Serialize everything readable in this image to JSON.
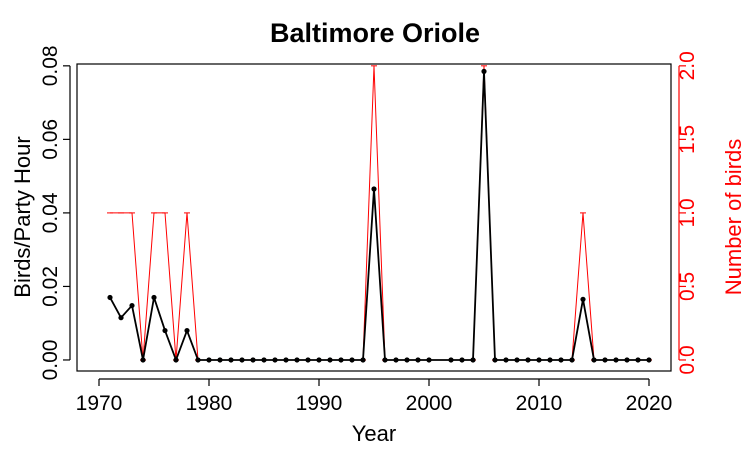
{
  "chart_data": {
    "type": "line",
    "title": "Baltimore Oriole",
    "xlabel": "Year",
    "ylabel_left": "Birds/Party Hour",
    "ylabel_right": "Number of birds",
    "xlim": [
      1968,
      2022
    ],
    "ylim_left": [
      -0.003,
      0.0805
    ],
    "ylim_right": [
      -0.075,
      2.0125
    ],
    "x_ticks": [
      "1970",
      "1980",
      "1990",
      "2000",
      "2010",
      "2020"
    ],
    "y_ticks_left": [
      "0.00",
      "0.02",
      "0.04",
      "0.06",
      "0.08"
    ],
    "y_ticks_right": [
      "0.0",
      "0.5",
      "1.0",
      "1.5",
      "2.0"
    ],
    "grid": false,
    "colors": {
      "left_series": "#000000",
      "right_series": "#ff0000",
      "axes": "#000000"
    },
    "series": [
      {
        "axis": "left",
        "marker": "point",
        "points": [
          [
            1971,
            0.017
          ],
          [
            1972,
            0.0115
          ],
          [
            1973,
            0.0148
          ],
          [
            1974,
            0.0
          ],
          [
            1975,
            0.017
          ],
          [
            1976,
            0.008
          ],
          [
            1977,
            0.0
          ],
          [
            1978,
            0.008
          ],
          [
            1979,
            0.0
          ],
          [
            1980,
            0.0
          ],
          [
            1981,
            0.0
          ],
          [
            1982,
            0.0
          ],
          [
            1983,
            0.0
          ],
          [
            1984,
            0.0
          ],
          [
            1985,
            0.0
          ],
          [
            1986,
            0.0
          ],
          [
            1987,
            0.0
          ],
          [
            1988,
            0.0
          ],
          [
            1989,
            0.0
          ],
          [
            1990,
            0.0
          ],
          [
            1991,
            0.0
          ],
          [
            1992,
            0.0
          ],
          [
            1993,
            0.0
          ],
          [
            1994,
            0.0
          ],
          [
            1995,
            0.0465
          ],
          [
            1996,
            0.0
          ],
          [
            1997,
            0.0
          ],
          [
            1998,
            0.0
          ],
          [
            1999,
            0.0
          ],
          [
            2000,
            0.0
          ],
          [
            2002,
            0.0
          ],
          [
            2003,
            0.0
          ],
          [
            2004,
            0.0
          ],
          [
            2005,
            0.0785
          ],
          [
            2006,
            0.0
          ],
          [
            2007,
            0.0
          ],
          [
            2008,
            0.0
          ],
          [
            2009,
            0.0
          ],
          [
            2010,
            0.0
          ],
          [
            2011,
            0.0
          ],
          [
            2012,
            0.0
          ],
          [
            2013,
            0.0
          ],
          [
            2014,
            0.0165
          ],
          [
            2015,
            0.0
          ],
          [
            2016,
            0.0
          ],
          [
            2017,
            0.0
          ],
          [
            2018,
            0.0
          ],
          [
            2019,
            0.0
          ],
          [
            2020,
            0.0
          ]
        ]
      },
      {
        "axis": "right",
        "marker": "tick",
        "points": [
          [
            1971,
            1
          ],
          [
            1972,
            1
          ],
          [
            1973,
            1
          ],
          [
            1974,
            0
          ],
          [
            1975,
            1
          ],
          [
            1976,
            1
          ],
          [
            1977,
            0
          ],
          [
            1978,
            1
          ],
          [
            1979,
            0
          ],
          [
            1980,
            0
          ],
          [
            1981,
            0
          ],
          [
            1982,
            0
          ],
          [
            1983,
            0
          ],
          [
            1984,
            0
          ],
          [
            1985,
            0
          ],
          [
            1986,
            0
          ],
          [
            1987,
            0
          ],
          [
            1988,
            0
          ],
          [
            1989,
            0
          ],
          [
            1990,
            0
          ],
          [
            1991,
            0
          ],
          [
            1992,
            0
          ],
          [
            1993,
            0
          ],
          [
            1994,
            0
          ],
          [
            1995,
            2
          ],
          [
            1996,
            0
          ],
          [
            1997,
            0
          ],
          [
            1998,
            0
          ],
          [
            1999,
            0
          ],
          [
            2000,
            0
          ],
          [
            2002,
            0
          ],
          [
            2003,
            0
          ],
          [
            2004,
            0
          ],
          [
            2005,
            2
          ],
          [
            2006,
            0
          ],
          [
            2007,
            0
          ],
          [
            2008,
            0
          ],
          [
            2009,
            0
          ],
          [
            2010,
            0
          ],
          [
            2011,
            0
          ],
          [
            2012,
            0
          ],
          [
            2013,
            0
          ],
          [
            2014,
            1
          ],
          [
            2015,
            0
          ],
          [
            2016,
            0
          ],
          [
            2017,
            0
          ],
          [
            2018,
            0
          ],
          [
            2019,
            0
          ],
          [
            2020,
            0
          ]
        ]
      }
    ]
  }
}
